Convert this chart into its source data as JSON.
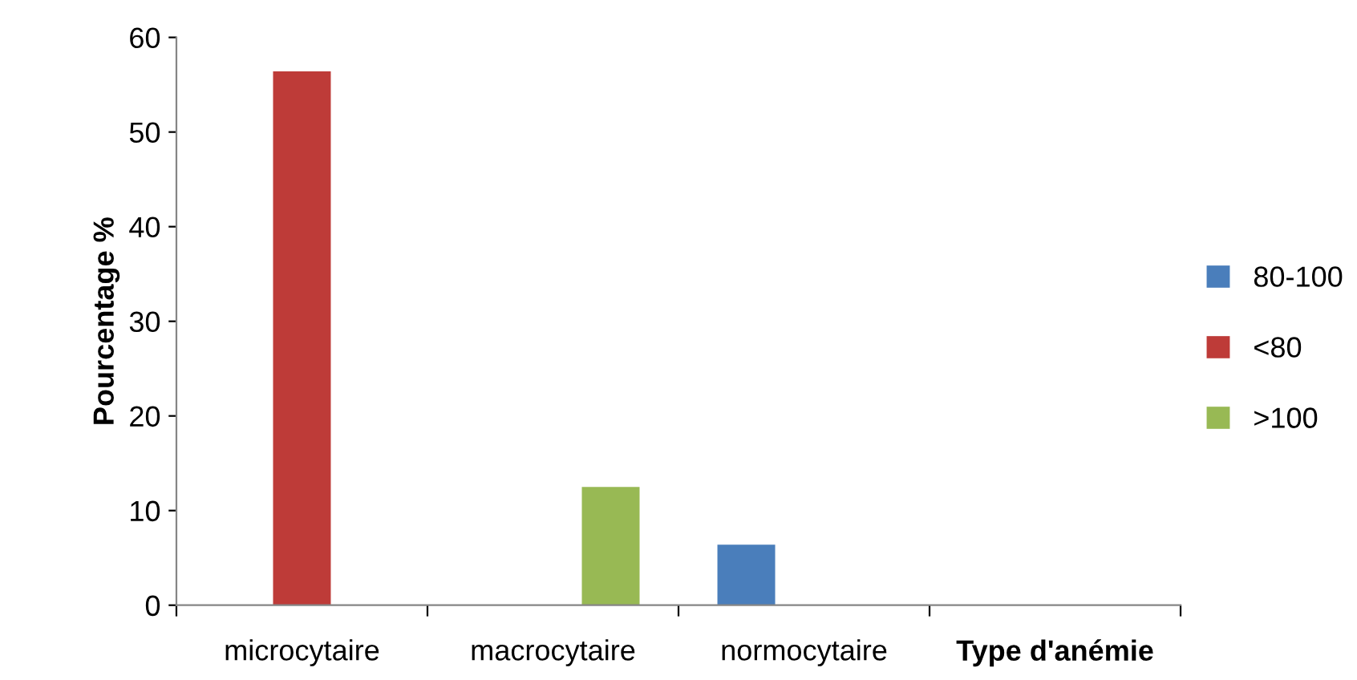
{
  "chart_data": {
    "type": "bar",
    "ylabel": "Pourcentage %",
    "xlabel": "Type d'anémie",
    "categories": [
      "microcytaire",
      "macrocytaire",
      "normocytaire",
      null
    ],
    "series": [
      {
        "name": "80-100",
        "color": "#4a7ebb",
        "values": [
          null,
          null,
          6.4,
          null
        ]
      },
      {
        "name": "<80",
        "color": "#be3b38",
        "values": [
          56.4,
          null,
          null,
          null
        ]
      },
      {
        "name": ">100",
        "color": "#98b954",
        "values": [
          null,
          12.5,
          null,
          null
        ]
      }
    ],
    "ylim": [
      0,
      60
    ],
    "yticks": [
      0,
      10,
      20,
      30,
      40,
      50,
      60
    ],
    "grid": false,
    "legend": "right"
  }
}
